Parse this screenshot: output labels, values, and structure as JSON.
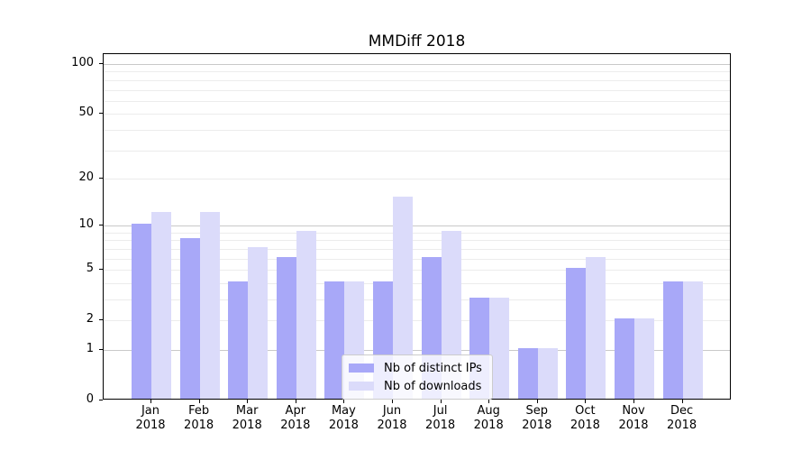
{
  "chart_data": {
    "type": "bar",
    "title": "MMDiff 2018",
    "categories": [
      "Jan 2018",
      "Feb 2018",
      "Mar 2018",
      "Apr 2018",
      "May 2018",
      "Jun 2018",
      "Jul 2018",
      "Aug 2018",
      "Sep 2018",
      "Oct 2018",
      "Nov 2018",
      "Dec 2018"
    ],
    "series": [
      {
        "name": "Nb of distinct IPs",
        "color": "#a8a8f8",
        "values": [
          10,
          8,
          4,
          6,
          4,
          4,
          6,
          3,
          1,
          5,
          2,
          4
        ]
      },
      {
        "name": "Nb of downloads",
        "color": "#dbdbfa",
        "values": [
          12,
          12,
          7,
          9,
          4,
          15,
          9,
          3,
          1,
          6,
          2,
          4
        ]
      }
    ],
    "xlabel": "",
    "ylabel": "",
    "yscale": "log1p",
    "ylim": [
      0,
      115
    ],
    "yticks": [
      100,
      50,
      20,
      10,
      5,
      2,
      1,
      0
    ],
    "minor_gridlines": [
      2,
      3,
      4,
      5,
      6,
      7,
      8,
      9,
      20,
      30,
      40,
      50,
      60,
      70,
      80,
      90
    ],
    "major_gridlines": [
      1,
      10,
      100
    ],
    "grid": true,
    "legend_position": "lower center"
  },
  "colors": {
    "grid_minor": "#ececec",
    "grid_major": "#c9c9c9",
    "axis": "#000000",
    "legend_border": "#cccccc",
    "legend_bg": "rgba(255,255,255,0.8)"
  }
}
